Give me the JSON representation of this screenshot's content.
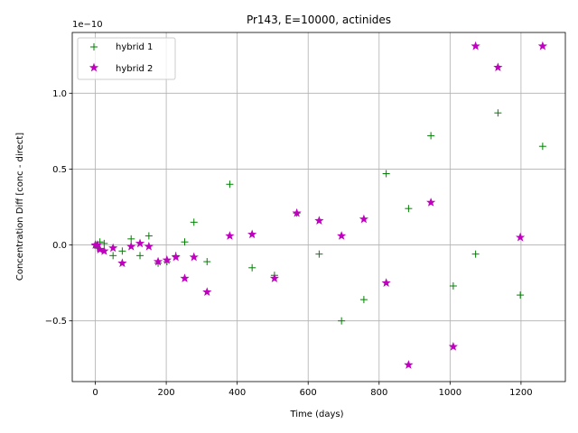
{
  "chart_data": {
    "type": "scatter",
    "title": "Pr143, E=10000, actinides",
    "xlabel": "Time (days)",
    "ylabel": "Concentration Diff [conc - direct]",
    "y_offset_text": "1e−10",
    "xlim": [
      -65,
      1325
    ],
    "ylim": [
      -0.9,
      1.4
    ],
    "xticks": [
      0,
      200,
      400,
      600,
      800,
      1000,
      1200
    ],
    "xtick_labels": [
      "0",
      "200",
      "400",
      "600",
      "800",
      "1000",
      "1200"
    ],
    "yticks": [
      -0.5,
      0.0,
      0.5,
      1.0
    ],
    "ytick_labels": [
      "−0.5",
      "0.0",
      "0.5",
      "1.0"
    ],
    "grid": true,
    "legend_position": "top-left",
    "series": [
      {
        "name": "hybrid 1",
        "marker": "plus",
        "color": "#008000",
        "points": [
          [
            0,
            0.0
          ],
          [
            6,
            -0.02
          ],
          [
            13,
            0.02
          ],
          [
            25,
            0.01
          ],
          [
            50,
            -0.07
          ],
          [
            76,
            -0.04
          ],
          [
            101,
            0.04
          ],
          [
            126,
            -0.07
          ],
          [
            151,
            0.06
          ],
          [
            177,
            -0.12
          ],
          [
            202,
            -0.11
          ],
          [
            227,
            -0.07
          ],
          [
            252,
            0.02
          ],
          [
            278,
            0.15
          ],
          [
            315,
            -0.11
          ],
          [
            379,
            0.4
          ],
          [
            442,
            -0.15
          ],
          [
            505,
            -0.2
          ],
          [
            568,
            0.21
          ],
          [
            631,
            -0.06
          ],
          [
            694,
            -0.5
          ],
          [
            757,
            -0.36
          ],
          [
            820,
            0.47
          ],
          [
            883,
            0.24
          ],
          [
            946,
            0.72
          ],
          [
            1009,
            -0.27
          ],
          [
            1072,
            -0.06
          ],
          [
            1135,
            0.87
          ],
          [
            1198,
            -0.33
          ],
          [
            1261,
            0.65
          ]
        ]
      },
      {
        "name": "hybrid 2",
        "marker": "star",
        "color": "#bf00bf",
        "points": [
          [
            0,
            0.0
          ],
          [
            6,
            0.0
          ],
          [
            13,
            -0.03
          ],
          [
            25,
            -0.04
          ],
          [
            50,
            -0.02
          ],
          [
            76,
            -0.12
          ],
          [
            101,
            -0.01
          ],
          [
            126,
            0.01
          ],
          [
            151,
            -0.01
          ],
          [
            177,
            -0.11
          ],
          [
            202,
            -0.1
          ],
          [
            227,
            -0.08
          ],
          [
            252,
            -0.22
          ],
          [
            278,
            -0.08
          ],
          [
            315,
            -0.31
          ],
          [
            379,
            0.06
          ],
          [
            442,
            0.07
          ],
          [
            505,
            -0.22
          ],
          [
            568,
            0.21
          ],
          [
            631,
            0.16
          ],
          [
            694,
            0.06
          ],
          [
            757,
            0.17
          ],
          [
            820,
            -0.25
          ],
          [
            883,
            -0.79
          ],
          [
            946,
            0.28
          ],
          [
            1009,
            -0.67
          ],
          [
            1072,
            1.31
          ],
          [
            1135,
            1.17
          ],
          [
            1198,
            0.05
          ],
          [
            1261,
            1.31
          ]
        ]
      }
    ]
  }
}
